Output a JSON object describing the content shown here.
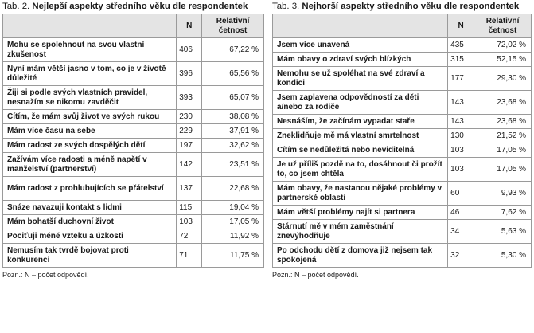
{
  "left": {
    "caption_prefix": "Tab. 2.",
    "caption_title": "Nejlepší aspekty středního věku dle respondentek",
    "col_n": "N",
    "col_rel_1": "Relativní",
    "col_rel_2": "četnost",
    "rows": [
      {
        "label": "Mohu se spolehnout na svou vlastní zkušenost",
        "n": "406",
        "pct": "67,22 %"
      },
      {
        "label": "Nyní mám větší jasno v tom, co je v životě důležité",
        "n": "396",
        "pct": "65,56 %"
      },
      {
        "label": "Žiji si podle svých vlastních pravidel, nesnažím se nikomu zavděčit",
        "n": "393",
        "pct": "65,07 %"
      },
      {
        "label": "Cítím, že mám svůj život ve svých rukou",
        "n": "230",
        "pct": "38,08 %"
      },
      {
        "label": "Mám více času na sebe",
        "n": "229",
        "pct": "37,91 %"
      },
      {
        "label": "Mám radost ze svých dospělých dětí",
        "n": "197",
        "pct": "32,62 %"
      },
      {
        "label": "Zažívám více radosti a méně napětí v manželství (partnerství)",
        "n": "142",
        "pct": "23,51 %"
      },
      {
        "label": "Mám radost z prohlubujících se přátelství",
        "n": "137",
        "pct": "22,68 %"
      },
      {
        "label": "Snáze navazuji kontakt s lidmi",
        "n": "115",
        "pct": "19,04 %"
      },
      {
        "label": "Mám bohatší duchovní život",
        "n": "103",
        "pct": "17,05 %"
      },
      {
        "label": "Pociťuji méně vzteku a úzkosti",
        "n": "72",
        "pct": "11,92 %"
      },
      {
        "label": "Nemusím tak tvrdě bojovat proti konkurenci",
        "n": "71",
        "pct": "11,75 %"
      }
    ],
    "note": "Pozn.: N – počet odpovědí."
  },
  "right": {
    "caption_prefix": "Tab. 3.",
    "caption_title": "Nejhorší aspekty středního věku dle respondentek",
    "col_n": "N",
    "col_rel_1": "Relativní",
    "col_rel_2": "četnost",
    "rows": [
      {
        "label": "Jsem více unavená",
        "n": "435",
        "pct": "72,02 %"
      },
      {
        "label": "Mám obavy o zdraví svých blízkých",
        "n": "315",
        "pct": "52,15 %"
      },
      {
        "label": "Nemohu se už spoléhat na své zdraví a kondici",
        "n": "177",
        "pct": "29,30 %"
      },
      {
        "label": "Jsem zaplavena odpovědností za děti a/nebo za rodiče",
        "n": "143",
        "pct": "23,68 %"
      },
      {
        "label": "Nesnáším, že začínám vypadat staře",
        "n": "143",
        "pct": "23,68 %"
      },
      {
        "label": "Zneklidňuje mě má vlastní smrtelnost",
        "n": "130",
        "pct": "21,52 %"
      },
      {
        "label": "Cítím se nedůležitá nebo neviditelná",
        "n": "103",
        "pct": "17,05 %"
      },
      {
        "label": "Je už příliš pozdě na to, dosáhnout či prožít to, co jsem chtěla",
        "n": "103",
        "pct": "17,05 %"
      },
      {
        "label": "Mám obavy, že nastanou nějaké problémy v partnerské oblasti",
        "n": "60",
        "pct": "9,93 %"
      },
      {
        "label": "Mám větší problémy najít si partnera",
        "n": "46",
        "pct": "7,62 %"
      },
      {
        "label": "Stárnutí mě v mém zaměstnání znevýhodňuje",
        "n": "34",
        "pct": "5,63 %"
      },
      {
        "label": "Po odchodu dětí z domova již nejsem tak spokojená",
        "n": "32",
        "pct": "5,30 %"
      }
    ],
    "note": "Pozn.: N – počet odpovědí."
  }
}
